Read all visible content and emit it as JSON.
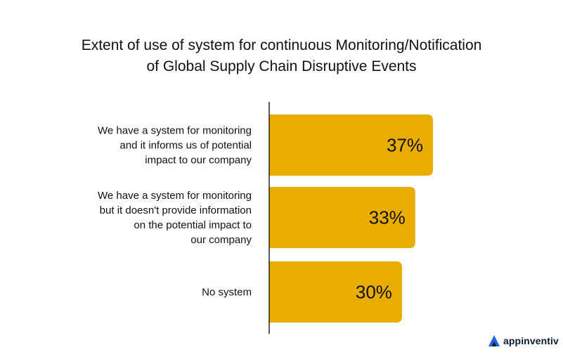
{
  "title": {
    "line1": "Extent of use of system for continuous Monitoring/Notification",
    "line2": "of Global Supply Chain Disruptive Events"
  },
  "colors": {
    "bar": "#e9ac00",
    "axis": "#222222",
    "text": "#111111",
    "logo": "#1f62e6"
  },
  "brand": {
    "name": "appinventiv",
    "icon": "appinventiv-logo-icon"
  },
  "chart_data": {
    "type": "bar",
    "orientation": "horizontal",
    "categories": [
      [
        "We have a system for monitoring",
        "and it informs us of potential",
        "impact to our company"
      ],
      [
        "We have a system for monitoring",
        "but it doesn't provide information",
        "on the potential impact to",
        "our company"
      ],
      [
        "No system"
      ]
    ],
    "values": [
      37,
      33,
      30
    ],
    "value_labels": [
      "37%",
      "33%",
      "30%"
    ],
    "title": "Extent of use of system for continuous Monitoring/Notification of Global Supply Chain Disruptive Events",
    "xlabel": "",
    "ylabel": "",
    "xlim": [
      0,
      37
    ],
    "grid": false,
    "legend": "none"
  }
}
